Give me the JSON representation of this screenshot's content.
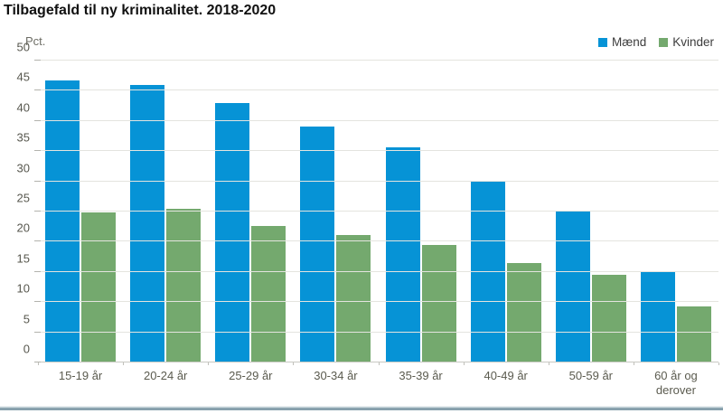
{
  "title": "Tilbagefald til ny kriminalitet. 2018-2020",
  "unit_label": "Pct.",
  "colors": {
    "maend": "#0693d6",
    "kvinder": "#74a96e",
    "gridline": "#e4e4df",
    "axis_text": "#57574e"
  },
  "chart_data": {
    "type": "bar",
    "title": "Tilbagefald til ny kriminalitet. 2018-2020",
    "ylabel": "Pct.",
    "xlabel": "",
    "ylim": [
      0,
      50
    ],
    "yticks": [
      0,
      5,
      10,
      15,
      20,
      25,
      30,
      35,
      40,
      45,
      50
    ],
    "grid": true,
    "legend_position": "top-right",
    "categories": [
      "15-19 år",
      "20-24 år",
      "25-29 år",
      "30-34 år",
      "35-39 år",
      "40-49 år",
      "50-59 år",
      "60 år og derover"
    ],
    "series": [
      {
        "name": "Mænd",
        "color": "#0693d6",
        "values": [
          46.7,
          45.9,
          43.0,
          39.0,
          35.7,
          30.1,
          25.0,
          15.0
        ]
      },
      {
        "name": "Kvinder",
        "color": "#74a96e",
        "values": [
          24.9,
          25.4,
          22.6,
          21.1,
          19.5,
          16.5,
          14.5,
          9.3
        ]
      }
    ]
  }
}
